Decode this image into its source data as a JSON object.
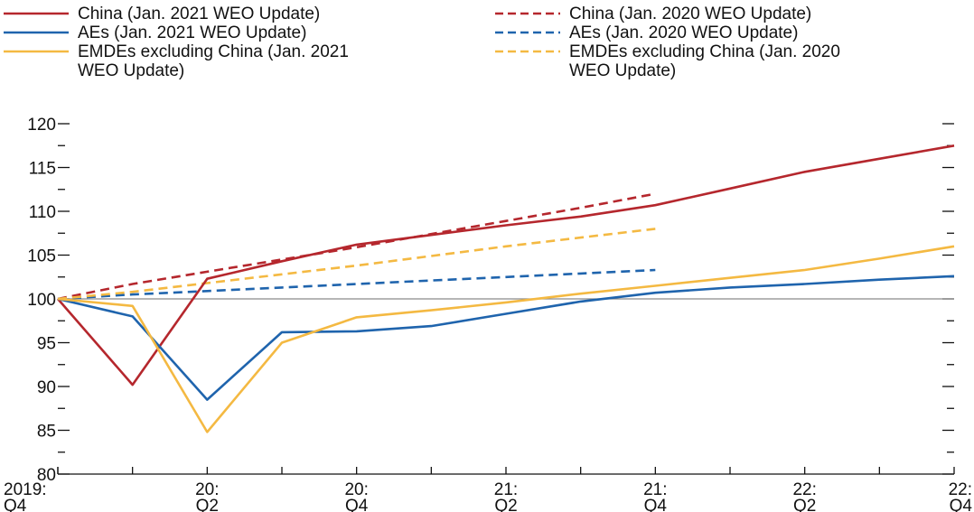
{
  "chart_data": {
    "type": "line",
    "title": "",
    "xlabel": "",
    "ylabel": "",
    "ylim": [
      80,
      120
    ],
    "yticks": [
      80,
      85,
      90,
      95,
      100,
      105,
      110,
      115,
      120
    ],
    "x": [
      "2019:Q4",
      "2020:Q1",
      "2020:Q2",
      "2020:Q3",
      "2020:Q4",
      "2021:Q1",
      "2021:Q2",
      "2021:Q3",
      "2021:Q4",
      "2022:Q1",
      "2022:Q2",
      "2022:Q3",
      "2022:Q4"
    ],
    "xtick_labels": [
      {
        "index": 0,
        "line1": "2019:",
        "line2": "Q4"
      },
      {
        "index": 2,
        "line1": "20:",
        "line2": "Q2"
      },
      {
        "index": 4,
        "line1": "20:",
        "line2": "Q4"
      },
      {
        "index": 6,
        "line1": "21:",
        "line2": "Q2"
      },
      {
        "index": 8,
        "line1": "21:",
        "line2": "Q4"
      },
      {
        "index": 10,
        "line1": "22:",
        "line2": "Q2"
      },
      {
        "index": 12,
        "line1": "22:",
        "line2": "Q4"
      }
    ],
    "reference_line": 100,
    "legend_position": "top",
    "series": [
      {
        "name": "China (Jan. 2021 WEO Update)",
        "name_lines": [
          "China (Jan. 2021 WEO Update)"
        ],
        "color": "#b5272d",
        "style": "solid",
        "values": [
          100,
          90.2,
          102.3,
          104.3,
          106.2,
          107.3,
          108.4,
          109.4,
          110.7,
          112.6,
          114.5,
          116.0,
          117.5
        ]
      },
      {
        "name": "AEs (Jan. 2021 WEO Update)",
        "name_lines": [
          "AEs (Jan. 2021 WEO Update)"
        ],
        "color": "#1f64ad",
        "style": "solid",
        "values": [
          100,
          98.0,
          88.5,
          96.2,
          96.3,
          96.9,
          98.3,
          99.7,
          100.7,
          101.3,
          101.7,
          102.2,
          102.6
        ]
      },
      {
        "name": "EMDEs excluding China (Jan. 2021 WEO Update)",
        "name_lines": [
          "EMDEs excluding China (Jan. 2021",
          "WEO Update)"
        ],
        "color": "#f4b942",
        "style": "solid",
        "values": [
          100,
          99.2,
          84.8,
          95.0,
          97.9,
          98.7,
          99.6,
          100.6,
          101.5,
          102.4,
          103.3,
          104.6,
          106.0
        ]
      },
      {
        "name": "China (Jan. 2020 WEO Update)",
        "name_lines": [
          "China (Jan. 2020 WEO Update)"
        ],
        "color": "#b5272d",
        "style": "dashed",
        "values": [
          100,
          101.7,
          103.1,
          104.5,
          105.9,
          107.4,
          108.9,
          110.4,
          112.0,
          null,
          null,
          null,
          null
        ]
      },
      {
        "name": "AEs (Jan. 2020 WEO Update)",
        "name_lines": [
          "AEs (Jan. 2020 WEO Update)"
        ],
        "color": "#1f64ad",
        "style": "dashed",
        "values": [
          100,
          100.5,
          100.9,
          101.3,
          101.7,
          102.1,
          102.5,
          102.9,
          103.3,
          null,
          null,
          null,
          null
        ]
      },
      {
        "name": "EMDEs excluding China (Jan. 2020 WEO Update)",
        "name_lines": [
          "EMDEs excluding China (Jan. 2020",
          "WEO Update)"
        ],
        "color": "#f4b942",
        "style": "dashed",
        "values": [
          100,
          100.8,
          101.8,
          102.8,
          103.8,
          104.9,
          106.0,
          107.0,
          108.0,
          null,
          null,
          null,
          null
        ]
      }
    ]
  }
}
